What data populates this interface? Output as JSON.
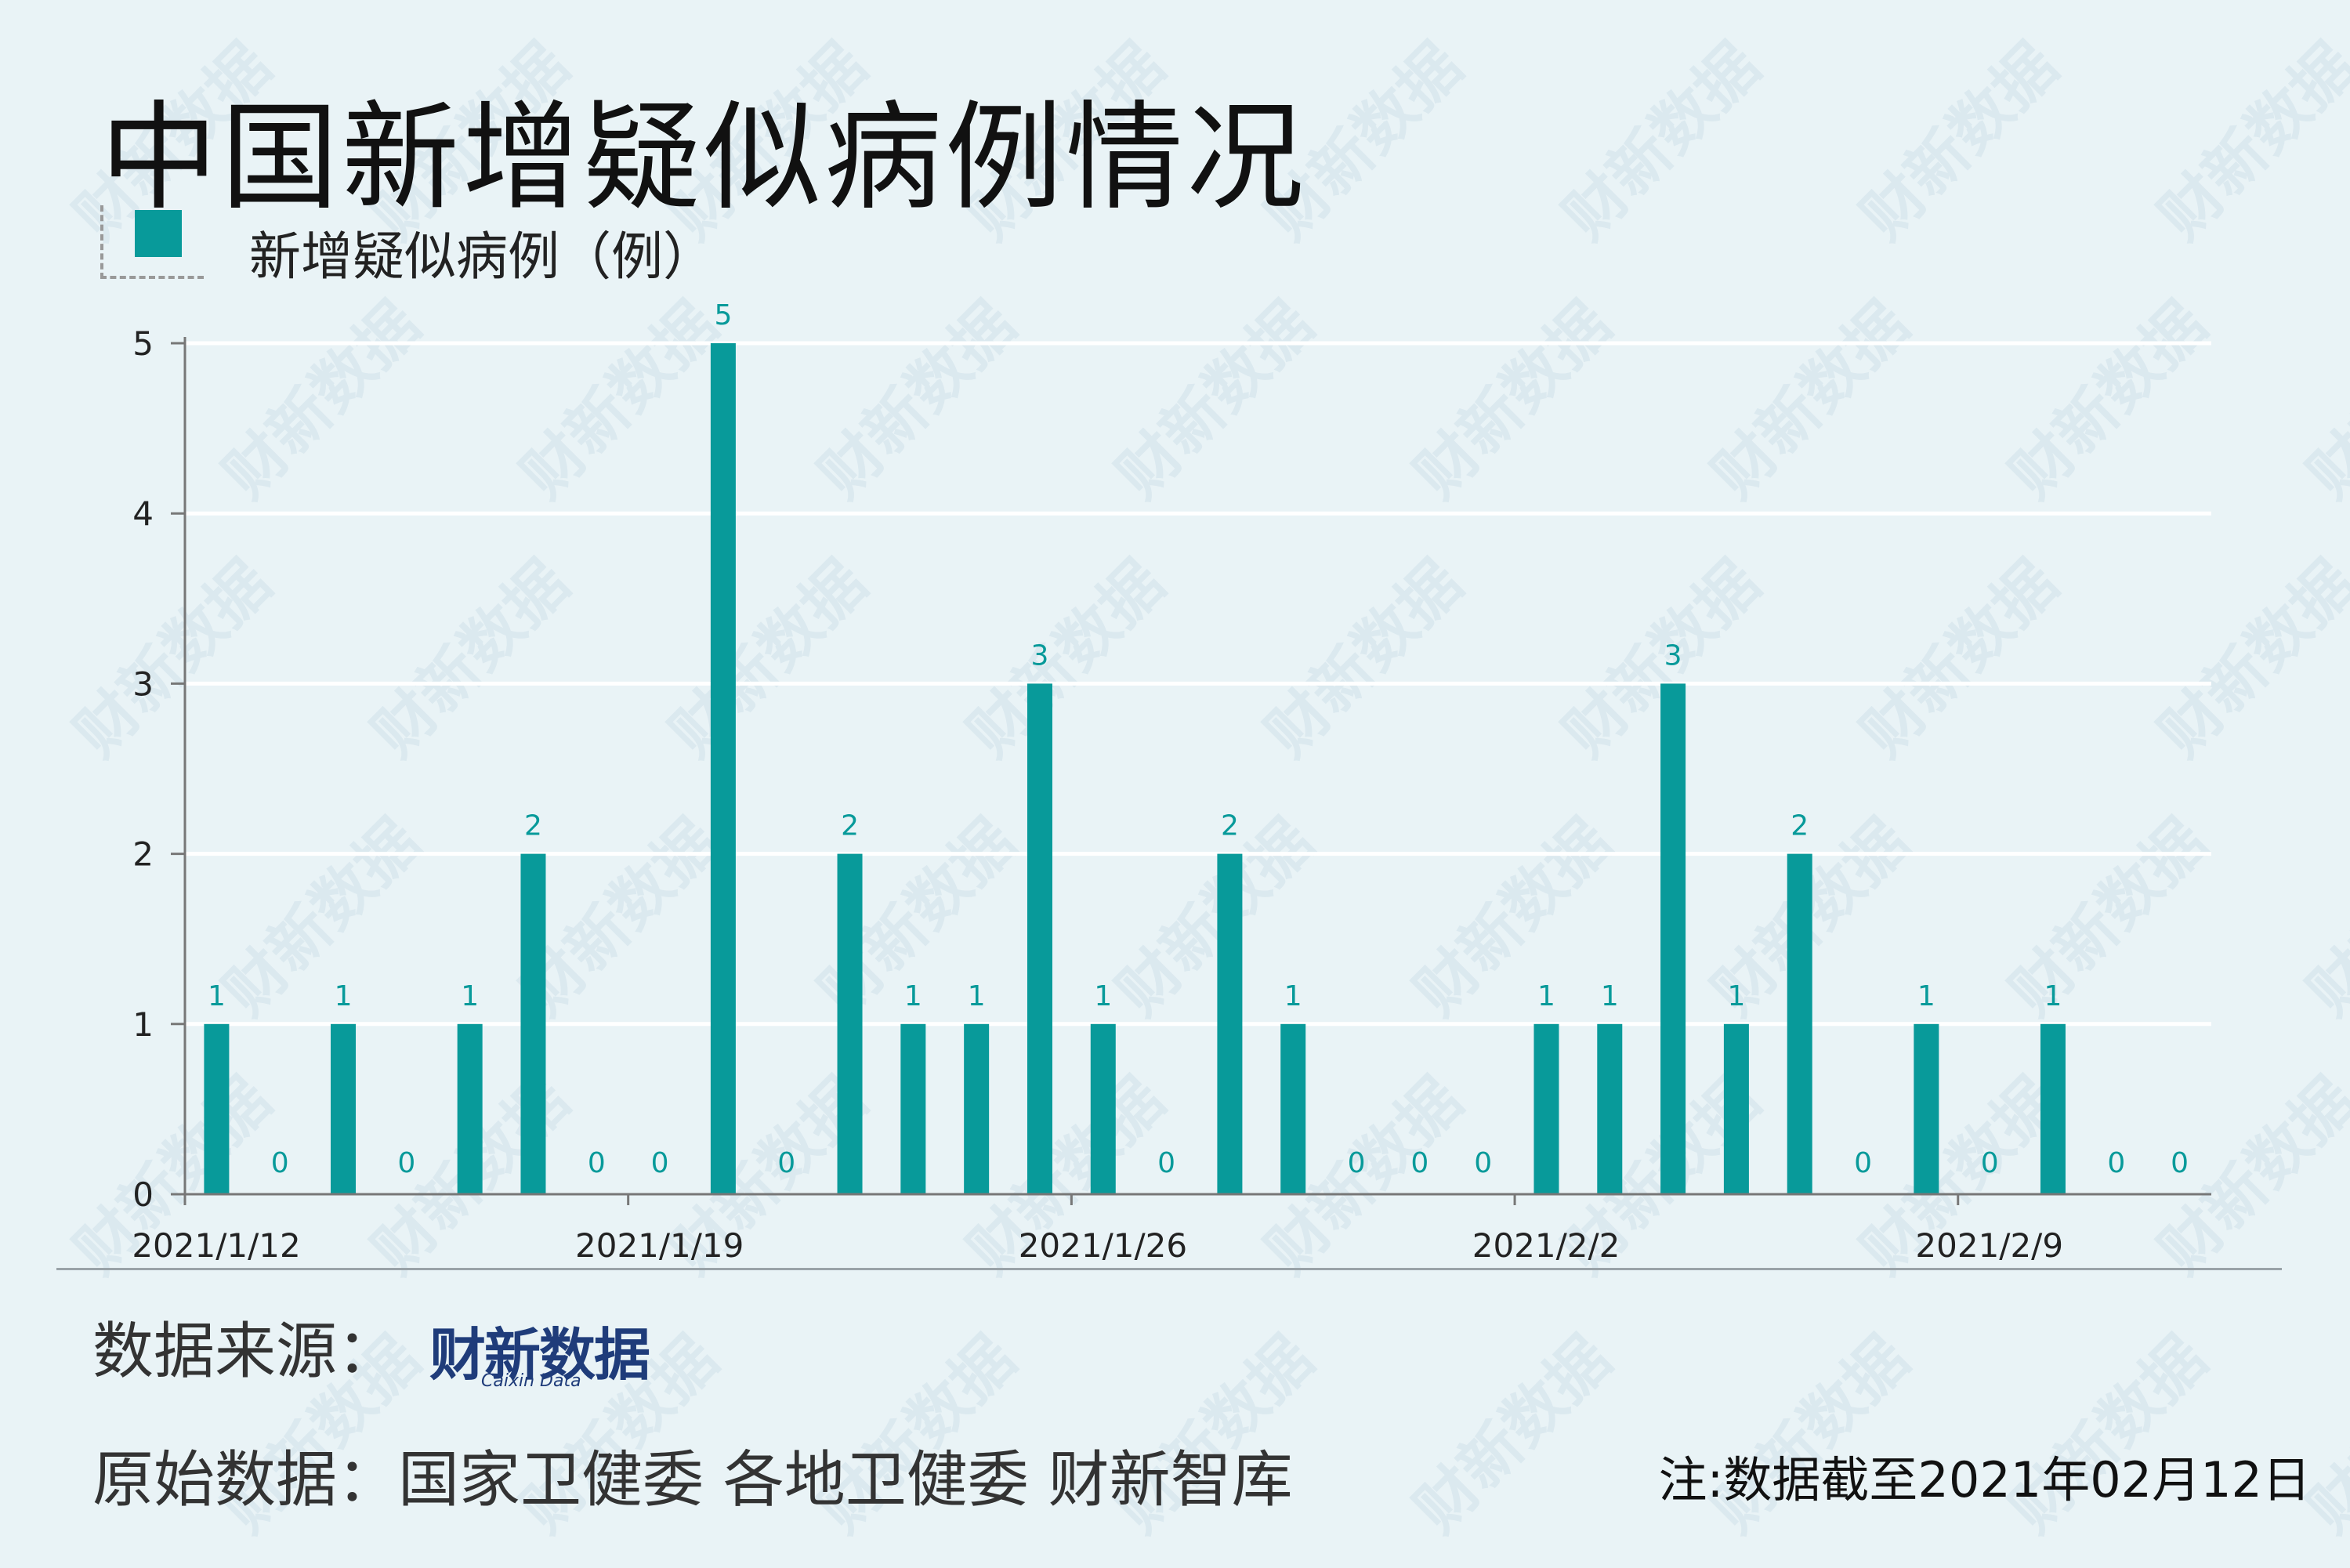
{
  "title": "中国新增疑似病例情况",
  "legend": {
    "label": "新增疑似病例（例）",
    "color": "#089a9a"
  },
  "chart_data": {
    "type": "bar",
    "x": [
      "2021/1/12",
      "2021/1/13",
      "2021/1/14",
      "2021/1/15",
      "2021/1/16",
      "2021/1/17",
      "2021/1/18",
      "2021/1/19",
      "2021/1/20",
      "2021/1/21",
      "2021/1/22",
      "2021/1/23",
      "2021/1/24",
      "2021/1/25",
      "2021/1/26",
      "2021/1/27",
      "2021/1/28",
      "2021/1/29",
      "2021/1/30",
      "2021/1/31",
      "2021/2/1",
      "2021/2/2",
      "2021/2/3",
      "2021/2/4",
      "2021/2/5",
      "2021/2/6",
      "2021/2/7",
      "2021/2/8",
      "2021/2/9",
      "2021/2/10",
      "2021/2/11",
      "2021/2/12"
    ],
    "series": [
      {
        "name": "新增疑似病例（例）",
        "color": "#089a9a",
        "values": [
          1,
          0,
          1,
          0,
          1,
          2,
          0,
          0,
          5,
          0,
          2,
          1,
          1,
          3,
          1,
          0,
          2,
          1,
          0,
          0,
          0,
          1,
          1,
          3,
          1,
          2,
          0,
          1,
          0,
          1,
          0,
          0
        ]
      }
    ],
    "x_tick_labels": [
      "2021/1/12",
      "2021/1/19",
      "2021/1/26",
      "2021/2/2",
      "2021/2/9"
    ],
    "y_ticks": [
      0,
      1,
      2,
      3,
      4,
      5
    ],
    "ylim": [
      0,
      5
    ],
    "grid": true,
    "data_labels": true,
    "legend_position": "top-left"
  },
  "footer": {
    "source_label": "数据来源：",
    "brand_cn": "财新数据",
    "brand_en": "Caixin Data",
    "origin": "原始数据：国家卫健委 各地卫健委 财新智库",
    "note": "注:数据截至2021年02月12日"
  },
  "watermark": "财新数据"
}
